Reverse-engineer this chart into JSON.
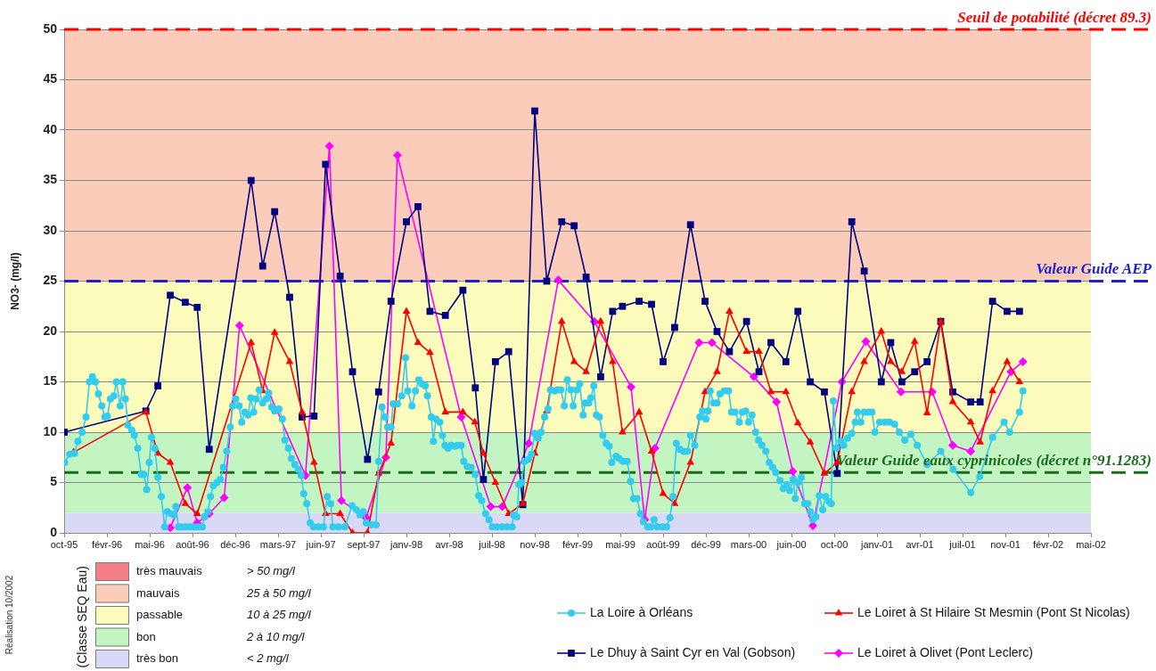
{
  "chart_data": {
    "type": "line",
    "ylabel": "NO3- (mg/l)",
    "legend_title": "(Classe SEQ Eau)",
    "xlim": [
      "1995-10-28",
      "2002-05-24"
    ],
    "xticks": [
      {
        "value": "1995-10-28",
        "label": "oct-95"
      },
      {
        "value": "1996-02-05",
        "label": "févr-96"
      },
      {
        "value": "1996-05-15",
        "label": "mai-96"
      },
      {
        "value": "1996-08-23",
        "label": "août-96"
      },
      {
        "value": "1996-12-01",
        "label": "déc-96"
      },
      {
        "value": "1997-03-11",
        "label": "mars-97"
      },
      {
        "value": "1997-06-19",
        "label": "juin-97"
      },
      {
        "value": "1997-09-27",
        "label": "sept-97"
      },
      {
        "value": "1998-01-05",
        "label": "janv-98"
      },
      {
        "value": "1998-04-15",
        "label": "avr-98"
      },
      {
        "value": "1998-07-24",
        "label": "juil-98"
      },
      {
        "value": "1998-11-01",
        "label": "nov-98"
      },
      {
        "value": "1999-02-09",
        "label": "févr-99"
      },
      {
        "value": "1999-05-20",
        "label": "mai-99"
      },
      {
        "value": "1999-08-28",
        "label": "août-99"
      },
      {
        "value": "1999-12-06",
        "label": "déc-99"
      },
      {
        "value": "2000-03-15",
        "label": "mars-00"
      },
      {
        "value": "2000-06-23",
        "label": "juin-00"
      },
      {
        "value": "2000-10-01",
        "label": "oct-00"
      },
      {
        "value": "2001-01-09",
        "label": "janv-01"
      },
      {
        "value": "2001-04-19",
        "label": "avr-01"
      },
      {
        "value": "2001-07-28",
        "label": "juil-01"
      },
      {
        "value": "2001-11-05",
        "label": "nov-01"
      },
      {
        "value": "2002-02-13",
        "label": "févr-02"
      },
      {
        "value": "2002-05-24",
        "label": "mai-02"
      }
    ],
    "ylim": [
      0,
      50
    ],
    "yticks": [
      0,
      5,
      10,
      15,
      20,
      25,
      30,
      35,
      40,
      45,
      50
    ],
    "grid": "y",
    "legend": "bottom",
    "series": [
      {
        "name": "La Loire à Orléans",
        "color": "#33ccee",
        "marker": "circle",
        "x": [
          "1995-10-29",
          "1995-11-10",
          "1995-11-21",
          "1995-11-29",
          "1995-12-09",
          "1995-12-18",
          "1995-12-26",
          "1996-01-02",
          "1996-01-09",
          "1996-01-16",
          "1996-01-24",
          "1996-01-31",
          "1996-02-06",
          "1996-02-13",
          "1996-02-21",
          "1996-02-27",
          "1996-03-07",
          "1996-03-13",
          "1996-03-19",
          "1996-03-25",
          "1996-04-03",
          "1996-04-09",
          "1996-04-17",
          "1996-04-25",
          "1996-05-01",
          "1996-05-08",
          "1996-05-14",
          "1996-05-19",
          "1996-05-27",
          "1996-06-03",
          "1996-06-11",
          "1996-06-19",
          "1996-06-25",
          "1996-07-04",
          "1996-07-10",
          "1996-07-15",
          "1996-07-21",
          "1996-07-28",
          "1996-08-07",
          "1996-08-17",
          "1996-08-26",
          "1996-09-05",
          "1996-09-15",
          "1996-09-20",
          "1996-09-28",
          "1996-10-04",
          "1996-10-11",
          "1996-10-19",
          "1996-10-27",
          "1996-11-03",
          "1996-11-11",
          "1996-11-19",
          "1996-11-25",
          "1996-12-02",
          "1996-12-10",
          "1996-12-16",
          "1996-12-23",
          "1996-12-31",
          "1997-01-06",
          "1997-01-13",
          "1997-01-19",
          "1997-01-26",
          "1997-02-03",
          "1997-02-11",
          "1997-02-17",
          "1997-02-24",
          "1997-03-03",
          "1997-03-13",
          "1997-03-21",
          "1997-03-27",
          "1997-04-04",
          "1997-04-11",
          "1997-04-19",
          "1997-04-27",
          "1997-05-04",
          "1997-05-10",
          "1997-05-17",
          "1997-05-25",
          "1997-06-02",
          "1997-06-13",
          "1997-06-25",
          "1997-07-04",
          "1997-07-12",
          "1997-07-17",
          "1997-07-30",
          "1997-08-14",
          "1997-08-31",
          "1997-09-10",
          "1997-09-18",
          "1997-09-26",
          "1997-10-03",
          "1997-10-15",
          "1997-10-26",
          "1997-11-01",
          "1997-11-09",
          "1997-11-16",
          "1997-11-22",
          "1997-11-30",
          "1997-12-05",
          "1997-12-15",
          "1997-12-25",
          "1998-01-03",
          "1998-01-08",
          "1998-01-18",
          "1998-01-26",
          "1998-02-03",
          "1998-02-10",
          "1998-02-18",
          "1998-02-23",
          "1998-03-04",
          "1998-03-09",
          "1998-03-15",
          "1998-03-24",
          "1998-03-30",
          "1998-04-05",
          "1998-04-12",
          "1998-04-20",
          "1998-04-28",
          "1998-05-05",
          "1998-05-13",
          "1998-05-19",
          "1998-05-27",
          "1998-06-05",
          "1998-06-15",
          "1998-06-23",
          "1998-06-30",
          "1998-07-09",
          "1998-07-17",
          "1998-07-25",
          "1998-08-05",
          "1998-08-17",
          "1998-08-28",
          "1998-09-09",
          "1998-09-12",
          "1998-09-20",
          "1998-09-25",
          "1998-10-01",
          "1998-10-08",
          "1998-10-17",
          "1998-10-24",
          "1998-11-01",
          "1998-11-09",
          "1998-11-16",
          "1998-11-24",
          "1998-12-02",
          "1998-12-08",
          "1998-12-17",
          "1998-12-24",
          "1999-01-01",
          "1999-01-09",
          "1999-01-16",
          "1999-01-24",
          "1999-01-30",
          "1999-02-07",
          "1999-02-14",
          "1999-02-22",
          "1999-02-27",
          "1999-03-07",
          "1999-03-12",
          "1999-03-19",
          "1999-03-25",
          "1999-04-01",
          "1999-04-09",
          "1999-04-17",
          "1999-04-24",
          "1999-04-30",
          "1999-05-10",
          "1999-05-17",
          "1999-05-26",
          "1999-06-05",
          "1999-06-13",
          "1999-06-20",
          "1999-06-28",
          "1999-07-06",
          "1999-07-13",
          "1999-07-23",
          "1999-07-30",
          "1999-08-07",
          "1999-08-14",
          "1999-08-26",
          "1999-09-05",
          "1999-09-13",
          "1999-09-20",
          "1999-09-28",
          "1999-10-06",
          "1999-10-15",
          "1999-10-24",
          "1999-10-31",
          "1999-11-10",
          "1999-11-22",
          "1999-11-28",
          "1999-12-06",
          "1999-12-11",
          "1999-12-16",
          "1999-12-24",
          "2000-01-01",
          "2000-01-08",
          "2000-01-18",
          "2000-01-28",
          "2000-02-04",
          "2000-02-12",
          "2000-02-22",
          "2000-02-29",
          "2000-03-08",
          "2000-03-15",
          "2000-03-23",
          "2000-03-31",
          "2000-04-07",
          "2000-04-15",
          "2000-04-24",
          "2000-05-02",
          "2000-05-10",
          "2000-05-17",
          "2000-05-27",
          "2000-06-04",
          "2000-06-12",
          "2000-06-19",
          "2000-06-27",
          "2000-07-02",
          "2000-07-08",
          "2000-07-16",
          "2000-07-24",
          "2000-07-31",
          "2000-08-06",
          "2000-08-12",
          "2000-08-19",
          "2000-08-27",
          "2000-09-04",
          "2000-09-11",
          "2000-09-19",
          "2000-09-24",
          "2000-09-29",
          "2000-10-06",
          "2000-10-16",
          "2000-10-23",
          "2000-11-01",
          "2000-11-11",
          "2000-11-19",
          "2000-11-24",
          "2000-12-02",
          "2000-12-10",
          "2000-12-20",
          "2000-12-28",
          "2001-01-04",
          "2001-01-15",
          "2001-01-27",
          "2001-02-07",
          "2001-02-19",
          "2001-03-02",
          "2001-03-15",
          "2001-03-29",
          "2001-04-13",
          "2001-05-06",
          "2001-06-07",
          "2001-07-06",
          "2001-08-16",
          "2001-09-06",
          "2001-10-06",
          "2001-11-02",
          "2001-11-15",
          "2001-12-08",
          "2001-12-16"
        ],
        "values": [
          7.0,
          7.8,
          7.9,
          9.1,
          10.0,
          11.5,
          15.0,
          15.5,
          15.0,
          13.8,
          12.6,
          11.5,
          11.6,
          13.3,
          13.6,
          15.0,
          12.6,
          15.0,
          13.3,
          10.7,
          10.2,
          9.7,
          8.4,
          5.8,
          5.8,
          4.3,
          7.0,
          9.5,
          8.4,
          5.5,
          3.6,
          0.6,
          2.1,
          1.9,
          1.8,
          2.6,
          0.6,
          0.6,
          0.6,
          0.6,
          0.6,
          0.6,
          0.6,
          1.6,
          2.1,
          3.6,
          4.7,
          5.0,
          5.3,
          6.5,
          8.1,
          10.5,
          12.6,
          13.3,
          12.6,
          11.0,
          12.0,
          11.7,
          13.4,
          12.0,
          13.3,
          14.2,
          12.9,
          13.3,
          13.9,
          12.5,
          12.1,
          12.3,
          11.3,
          9.2,
          8.4,
          7.4,
          6.8,
          6.3,
          5.7,
          3.9,
          2.9,
          1.0,
          0.6,
          0.6,
          0.6,
          3.6,
          2.9,
          0.6,
          0.6,
          0.6,
          2.7,
          2.3,
          1.8,
          2.1,
          1.0,
          0.8,
          0.8,
          7.1,
          12.5,
          11.5,
          10.5,
          10.5,
          12.8,
          12.8,
          13.6,
          17.4,
          14.1,
          12.6,
          14.1,
          15.2,
          14.8,
          14.6,
          13.6,
          11.5,
          9.1,
          11.3,
          11.0,
          9.7,
          8.7,
          8.4,
          8.7,
          8.6,
          8.7,
          8.7,
          7.1,
          6.6,
          6.5,
          5.8,
          3.7,
          3.2,
          1.9,
          1.3,
          0.6,
          0.6,
          0.6,
          0.6,
          0.6,
          1.8,
          1.6,
          4.8,
          5.0,
          7.1,
          7.3,
          7.8,
          9.9,
          9.4,
          10.0,
          11.5,
          12.3,
          14.2,
          14.1,
          14.2,
          14.2,
          12.6,
          15.2,
          14.2,
          12.6,
          14.2,
          14.8,
          11.7,
          12.9,
          12.9,
          13.4,
          14.6,
          11.7,
          11.5,
          9.7,
          8.9,
          8.6,
          7.0,
          7.6,
          7.4,
          7.1,
          7.1,
          5.1,
          3.4,
          3.4,
          1.9,
          1.1,
          0.6,
          0.6,
          1.3,
          0.6,
          0.6,
          0.6,
          1.5,
          3.6,
          8.9,
          8.3,
          8.1,
          8.1,
          9.7,
          8.7,
          11.5,
          12.1,
          11.3,
          12.1,
          14.1,
          12.9,
          12.9,
          13.8,
          14.1,
          14.1,
          12.0,
          12.0,
          11.0,
          12.0,
          12.1,
          11.0,
          11.7,
          10.0,
          9.2,
          8.7,
          8.1,
          7.0,
          6.5,
          6.0,
          5.2,
          4.4,
          4.8,
          4.2,
          5.3,
          3.4,
          5.0,
          5.5,
          2.9,
          2.9,
          2.1,
          1.3,
          1.6,
          3.7,
          2.3,
          3.6,
          3.1,
          2.9,
          13.1,
          8.4,
          9.1,
          8.7,
          9.4,
          9.9,
          11.0,
          12.0,
          11.0,
          12.0,
          12.0,
          12.0,
          10.0,
          11.0,
          11.0,
          11.0,
          10.8,
          10.0,
          9.2,
          9.8,
          8.7,
          6.8,
          8.1,
          6.3,
          4.0,
          5.6,
          9.5,
          11.0,
          10.0,
          12.0,
          14.1
        ]
      },
      {
        "name": "Le Loiret à St Hilaire St Mesmin (Pont St Nicolas)",
        "color": "#ff0000",
        "marker": "triangle",
        "x": [
          "1995-11-19",
          "1996-05-06",
          "1996-06-03",
          "1996-07-02",
          "1996-08-06",
          "1996-09-03",
          "1997-01-07",
          "1997-02-03",
          "1997-03-03",
          "1997-04-07",
          "1997-05-06",
          "1997-06-03",
          "1997-06-30",
          "1997-08-03",
          "1997-09-01",
          "1997-10-06",
          "1997-11-01",
          "1997-11-30",
          "1998-01-05",
          "1998-02-01",
          "1998-03-01",
          "1998-04-06",
          "1998-05-17",
          "1998-06-14",
          "1998-07-04",
          "1998-08-01",
          "1998-09-01",
          "1998-10-04",
          "1998-11-01",
          "1998-11-29",
          "1999-01-03",
          "1999-02-01",
          "1999-03-01",
          "1999-04-04",
          "1999-05-02",
          "1999-05-25",
          "1999-07-03",
          "1999-08-01",
          "1999-08-28",
          "1999-09-24",
          "1999-10-31",
          "1999-12-04",
          "2000-01-01",
          "2000-01-30",
          "2000-03-10",
          "2000-04-08",
          "2000-05-06",
          "2000-06-10",
          "2000-07-08",
          "2000-08-06",
          "2000-09-08",
          "2000-10-08",
          "2000-11-11",
          "2000-12-10",
          "2001-01-19",
          "2001-02-10",
          "2001-03-08",
          "2001-04-07",
          "2001-05-06",
          "2001-06-07",
          "2001-07-05",
          "2001-08-16",
          "2001-09-07",
          "2001-10-06",
          "2001-11-09",
          "2001-12-08"
        ],
        "values": [
          8.0,
          12.0,
          7.9,
          7.0,
          2.9,
          1.9,
          18.9,
          14.1,
          19.9,
          17.0,
          12.0,
          7.0,
          1.9,
          1.9,
          0,
          0,
          5.9,
          8.9,
          22.0,
          18.9,
          17.9,
          12.0,
          12.0,
          11.0,
          7.9,
          5.0,
          1.9,
          2.9,
          7.9,
          12.1,
          21.0,
          17.0,
          16.0,
          21.0,
          17.0,
          10.0,
          12.0,
          8.1,
          3.9,
          2.9,
          7.0,
          14.0,
          16.0,
          22.0,
          18.0,
          18.0,
          14.0,
          14.0,
          10.9,
          9.0,
          5.9,
          7.0,
          14.0,
          17.0,
          20.0,
          17.0,
          16.0,
          19.0,
          11.9,
          21.0,
          13.0,
          11.0,
          9.0,
          14.1,
          17.0,
          15.0
        ]
      },
      {
        "name": "Le Dhuy à Saint Cyr en Val (Gobson)",
        "color": "#000080",
        "marker": "square",
        "x": [
          "1995-10-28",
          "1996-05-06",
          "1996-06-03",
          "1996-07-02",
          "1996-08-06",
          "1996-09-03",
          "1996-10-01",
          "1997-01-07",
          "1997-02-03",
          "1997-03-03",
          "1997-04-07",
          "1997-05-06",
          "1997-06-03",
          "1997-06-30",
          "1997-08-03",
          "1997-09-01",
          "1997-10-06",
          "1997-11-01",
          "1997-11-30",
          "1998-01-05",
          "1998-02-01",
          "1998-03-01",
          "1998-04-06",
          "1998-05-17",
          "1998-06-15",
          "1998-07-04",
          "1998-08-01",
          "1998-09-01",
          "1998-10-04",
          "1998-11-01",
          "1998-11-29",
          "1999-01-03",
          "1999-02-01",
          "1999-03-01",
          "1999-04-04",
          "1999-05-02",
          "1999-05-25",
          "1999-07-03",
          "1999-08-01",
          "1999-08-28",
          "1999-09-24",
          "1999-10-31",
          "1999-12-04",
          "2000-01-01",
          "2000-01-30",
          "2000-03-10",
          "2000-04-08",
          "2000-05-06",
          "2000-06-10",
          "2000-07-08",
          "2000-08-06",
          "2000-09-08",
          "2000-10-08",
          "2000-11-11",
          "2000-12-10",
          "2001-01-19",
          "2001-02-10",
          "2001-03-08",
          "2001-04-07",
          "2001-05-06",
          "2001-06-07",
          "2001-07-05",
          "2001-08-16",
          "2001-09-07",
          "2001-10-06",
          "2001-11-09",
          "2001-12-08"
        ],
        "values": [
          10.0,
          12.1,
          14.6,
          23.6,
          22.9,
          22.4,
          8.3,
          35.0,
          26.5,
          31.9,
          23.4,
          11.5,
          11.6,
          36.6,
          25.5,
          16.0,
          7.3,
          14.0,
          23.0,
          30.9,
          32.4,
          22.0,
          21.6,
          24.1,
          14.4,
          5.3,
          17.0,
          18.0,
          2.8,
          41.9,
          25.0,
          30.9,
          30.5,
          25.4,
          15.5,
          22.0,
          22.5,
          23.0,
          22.7,
          17.0,
          20.4,
          30.6,
          23.0,
          20.0,
          18.0,
          21.0,
          16.0,
          18.9,
          17.0,
          22.0,
          15.0,
          14.0,
          5.9,
          30.9,
          26.0,
          15.0,
          18.9,
          15.0,
          16.0,
          17.0,
          21.0,
          14.0,
          13.0,
          13.0,
          23.0,
          22.0,
          22.0
        ]
      },
      {
        "name": "Le Loiret à Olivet (Pont Leclerc)",
        "color": "#ff00ff",
        "marker": "diamond",
        "x": [
          "1996-07-02",
          "1996-08-11",
          "1996-09-03",
          "1996-10-01",
          "1996-11-05",
          "1996-12-11",
          "1997-05-14",
          "1997-07-09",
          "1997-08-06",
          "1997-10-03",
          "1997-11-18",
          "1997-12-15",
          "1998-05-13",
          "1998-07-21",
          "1998-08-17",
          "1998-10-18",
          "1998-12-26",
          "1999-03-20",
          "1999-06-14",
          "1999-07-16",
          "1999-08-09",
          "1999-11-20",
          "1999-12-20",
          "2000-03-27",
          "2000-05-19",
          "2000-06-26",
          "2000-08-12",
          "2000-10-19",
          "2000-12-14",
          "2001-03-06",
          "2001-05-18",
          "2001-07-05",
          "2001-08-16",
          "2001-11-18",
          "2001-12-16"
        ],
        "values": [
          0.5,
          4.5,
          1.0,
          1.9,
          3.5,
          20.6,
          5.7,
          38.4,
          3.2,
          1.5,
          7.5,
          37.5,
          11.5,
          2.6,
          2.6,
          8.9,
          25.1,
          21.0,
          14.5,
          1.3,
          8.4,
          18.9,
          18.9,
          15.5,
          13.0,
          6.1,
          0.7,
          15.0,
          19.0,
          14.0,
          14.0,
          8.7,
          8.1,
          16.0,
          17.0
        ]
      }
    ],
    "bands": [
      {
        "axis": "y",
        "from": 25,
        "to": 50,
        "label": "mauvais",
        "color": "#fbccb9"
      },
      {
        "axis": "y",
        "from": 10,
        "to": 25,
        "label": "passable",
        "color": "#fbfbbb"
      },
      {
        "axis": "y",
        "from": 2,
        "to": 10,
        "label": "bon",
        "color": "#c3f5c3"
      },
      {
        "axis": "y",
        "from": 0,
        "to": 2,
        "label": "très bon",
        "color": "#d9d9f5"
      }
    ],
    "ref_lines": [
      {
        "axis": "y",
        "value": 50,
        "label": "Seuil de potabilité (décret 89.3)",
        "color": "#ff0000",
        "line_style": "dashed"
      },
      {
        "axis": "y",
        "value": 25,
        "label": "Valeur Guide AEP",
        "color": "#2020d0",
        "line_style": "dashed"
      },
      {
        "axis": "y",
        "value": 6,
        "label": "Valeur Guide eaux cyprinicoles (décret n°91.1283)",
        "color": "#1b6b1b",
        "line_style": "dashed"
      }
    ],
    "annotations": [
      "très mauvais",
      "> 50 mg/l",
      "25 à 50 mg/l",
      "10 à 25 mg/l",
      "2 à 10 mg/l",
      "< 2 mg/l",
      "Réalisation 10/2002"
    ]
  }
}
